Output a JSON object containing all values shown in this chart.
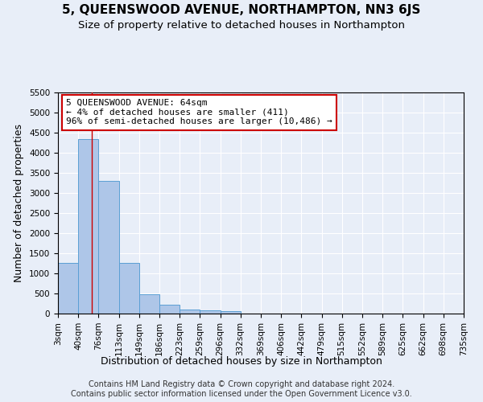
{
  "title": "5, QUEENSWOOD AVENUE, NORTHAMPTON, NN3 6JS",
  "subtitle": "Size of property relative to detached houses in Northampton",
  "xlabel": "Distribution of detached houses by size in Northampton",
  "ylabel": "Number of detached properties",
  "footer_line1": "Contains HM Land Registry data © Crown copyright and database right 2024.",
  "footer_line2": "Contains public sector information licensed under the Open Government Licence v3.0.",
  "annotation_title": "5 QUEENSWOOD AVENUE: 64sqm",
  "annotation_line1": "← 4% of detached houses are smaller (411)",
  "annotation_line2": "96% of semi-detached houses are larger (10,486) →",
  "property_size": 64,
  "bin_edges": [
    3,
    40,
    76,
    113,
    149,
    186,
    223,
    259,
    296,
    332,
    369,
    406,
    442,
    479,
    515,
    552,
    589,
    625,
    662,
    698,
    735
  ],
  "bar_heights": [
    1270,
    4350,
    3300,
    1270,
    490,
    220,
    95,
    75,
    60,
    0,
    0,
    0,
    0,
    0,
    0,
    0,
    0,
    0,
    0,
    0
  ],
  "bar_color": "#aec6e8",
  "bar_edge_color": "#5a9fd4",
  "vline_color": "#cc0000",
  "vline_x": 64,
  "annotation_box_color": "#cc0000",
  "bg_color": "#e8eef8",
  "plot_bg_color": "#e8eef8",
  "grid_color": "#ffffff",
  "ylim": [
    0,
    5500
  ],
  "yticks": [
    0,
    500,
    1000,
    1500,
    2000,
    2500,
    3000,
    3500,
    4000,
    4500,
    5000,
    5500
  ],
  "title_fontsize": 11,
  "subtitle_fontsize": 9.5,
  "xlabel_fontsize": 9,
  "ylabel_fontsize": 9,
  "tick_fontsize": 7.5,
  "annotation_fontsize": 8,
  "footer_fontsize": 7
}
